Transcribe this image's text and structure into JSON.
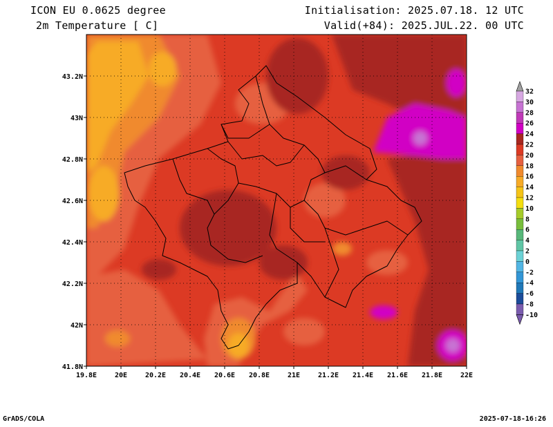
{
  "header": {
    "model": "ICON EU 0.0625 degree",
    "variable": "2m Temperature [ C]",
    "initialisation": "Initialisation: 2025.07.18. 12 UTC",
    "valid": "Valid(+84): 2025.JUL.22. 00 UTC"
  },
  "footer": {
    "left": "GrADS/COLA",
    "right": "2025-07-18-16:26"
  },
  "map": {
    "lon_range": [
      19.8,
      22.0
    ],
    "lat_range": [
      41.8,
      43.4
    ],
    "x_ticks": [
      "19.8E",
      "20E",
      "20.2E",
      "20.4E",
      "20.6E",
      "20.8E",
      "21E",
      "21.2E",
      "21.4E",
      "21.6E",
      "21.8E",
      "22E"
    ],
    "y_ticks": [
      "41.8N",
      "42N",
      "42.2N",
      "42.4N",
      "42.6N",
      "42.8N",
      "43N",
      "43.2N"
    ],
    "grid": "dotted",
    "base_color": "#dc3a24"
  },
  "colorbar": {
    "labels": [
      "32",
      "30",
      "28",
      "26",
      "24",
      "22",
      "20",
      "18",
      "16",
      "14",
      "12",
      "10",
      "8",
      "6",
      "4",
      "2",
      "0",
      "-2",
      "-4",
      "-6",
      "-8",
      "-10"
    ],
    "colors": [
      "#a0a0a0",
      "#d7a8e2",
      "#c773d3",
      "#c03ab8",
      "#d100c4",
      "#a82820",
      "#dc3a24",
      "#e66040",
      "#f08a2e",
      "#f7ab28",
      "#f5c418",
      "#f4de10",
      "#a6cc2a",
      "#78be3c",
      "#58b87a",
      "#60c6a6",
      "#6cd2d6",
      "#52b6e4",
      "#3296d6",
      "#2078b8",
      "#1c4c9a",
      "#7a5cae"
    ]
  }
}
